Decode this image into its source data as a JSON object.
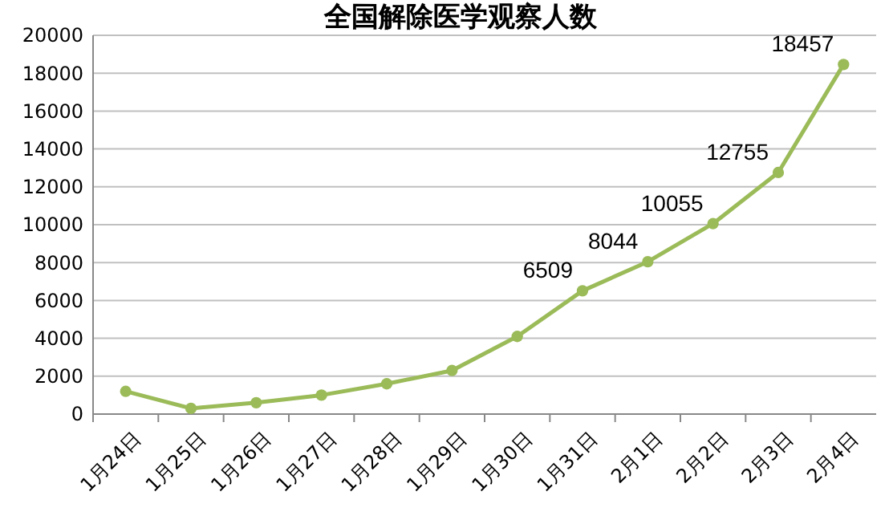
{
  "chart_data": {
    "type": "line",
    "title": "全国解除医学观察人数",
    "categories": [
      "1月24日",
      "1月25日",
      "1月26日",
      "1月27日",
      "1月28日",
      "1月29日",
      "1月30日",
      "1月31日",
      "2月1日",
      "2月2日",
      "2月3日",
      "2月4日"
    ],
    "series": [
      {
        "color": "#9bbb59",
        "values": [
          1200,
          300,
          600,
          1000,
          1600,
          2300,
          4100,
          6509,
          8044,
          10055,
          12755,
          18457
        ],
        "value_labels": [
          null,
          null,
          null,
          null,
          null,
          null,
          null,
          "6509",
          "8044",
          "10055",
          "12755",
          "18457"
        ]
      }
    ],
    "ylim": [
      0,
      20000
    ],
    "yticks": [
      0,
      2000,
      4000,
      6000,
      8000,
      10000,
      12000,
      14000,
      16000,
      18000,
      20000
    ],
    "grid": "y",
    "marker": "circle",
    "line_style": "solid"
  }
}
